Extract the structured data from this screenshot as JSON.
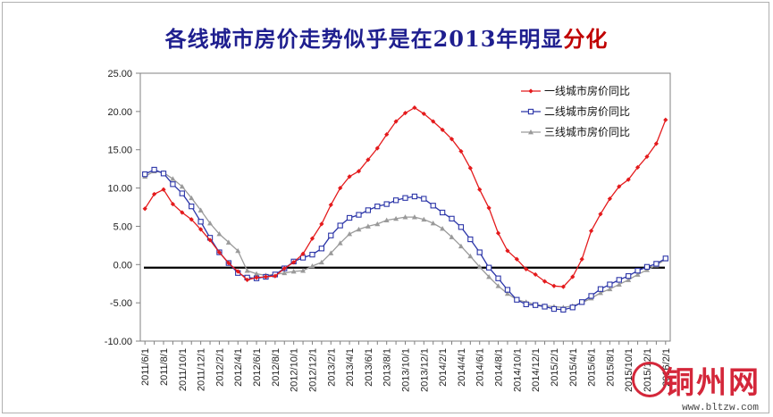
{
  "title_main": "各线城市房价走势似乎是在2013年明显",
  "title_accent": "分化",
  "colors": {
    "series1": "#e41a1c",
    "series2": "#2b35a8",
    "series3": "#9a9a9a",
    "zero_line": "#000000"
  },
  "watermark": {
    "name": "铜州网",
    "url": "www.bltzw.com"
  },
  "chart_data": {
    "type": "line",
    "title": "各线城市房价走势似乎是在2013年明显分化",
    "ylim": [
      -10,
      25
    ],
    "yticks": [
      "25.00",
      "20.00",
      "15.00",
      "10.00",
      "5.00",
      "0.00",
      "-5.00",
      "-10.00"
    ],
    "x": [
      "2011/6/1",
      "2011/7/1",
      "2011/8/1",
      "2011/9/1",
      "2011/10/1",
      "2011/11/1",
      "2011/12/1",
      "2012/1/1",
      "2012/2/1",
      "2012/3/1",
      "2012/4/1",
      "2012/5/1",
      "2012/6/1",
      "2012/7/1",
      "2012/8/1",
      "2012/9/1",
      "2012/10/1",
      "2012/11/1",
      "2012/12/1",
      "2013/1/1",
      "2013/2/1",
      "2013/3/1",
      "2013/4/1",
      "2013/5/1",
      "2013/6/1",
      "2013/7/1",
      "2013/8/1",
      "2013/9/1",
      "2013/10/1",
      "2013/11/1",
      "2013/12/1",
      "2014/1/1",
      "2014/2/1",
      "2014/3/1",
      "2014/4/1",
      "2014/5/1",
      "2014/6/1",
      "2014/7/1",
      "2014/8/1",
      "2014/9/1",
      "2014/10/1",
      "2014/11/1",
      "2014/12/1",
      "2015/1/1",
      "2015/2/1",
      "2015/3/1",
      "2015/4/1",
      "2015/5/1",
      "2015/6/1",
      "2015/7/1",
      "2015/8/1",
      "2015/9/1",
      "2015/10/1",
      "2015/11/1",
      "2015/12/1",
      "2016/1/1",
      "2016/2/1"
    ],
    "xtick_labels": [
      "2011/6/1",
      "2011/8/1",
      "2011/10/1",
      "2011/12/1",
      "2012/2/1",
      "2012/4/1",
      "2012/6/1",
      "2012/8/1",
      "2012/10/1",
      "2012/12/1",
      "2013/2/1",
      "2013/4/1",
      "2013/6/1",
      "2013/8/1",
      "2013/10/1",
      "2013/12/1",
      "2014/2/1",
      "2014/4/1",
      "2014/6/1",
      "2014/8/1",
      "2014/10/1",
      "2014/12/1",
      "2015/2/1",
      "2015/4/1",
      "2015/6/1",
      "2015/8/1",
      "2015/10/1",
      "2015/12/1",
      "2016/2/1"
    ],
    "legend_position": "top-right",
    "series": [
      {
        "name": "一线城市房价同比",
        "marker": "diamond",
        "values": [
          7.3,
          9.2,
          9.8,
          7.9,
          6.8,
          5.9,
          4.6,
          3.2,
          1.6,
          0.2,
          -0.9,
          -2.0,
          -1.7,
          -1.6,
          -1.5,
          -0.5,
          0.3,
          1.4,
          3.4,
          5.3,
          7.8,
          10.0,
          11.5,
          12.2,
          13.7,
          15.2,
          17.0,
          18.7,
          19.8,
          20.5,
          19.7,
          18.7,
          17.6,
          16.4,
          14.8,
          12.6,
          9.8,
          7.4,
          4.1,
          1.8,
          0.7,
          -0.6,
          -1.3,
          -2.2,
          -2.8,
          -2.9,
          -1.6,
          0.7,
          4.4,
          6.6,
          8.6,
          10.2,
          11.1,
          12.7,
          14.1,
          15.8,
          18.9
        ]
      },
      {
        "name": "二线城市房价同比",
        "marker": "square",
        "values": [
          11.8,
          12.4,
          11.9,
          10.5,
          9.3,
          7.6,
          5.6,
          3.5,
          1.6,
          0.2,
          -1.1,
          -1.7,
          -1.8,
          -1.6,
          -1.3,
          -0.5,
          0.4,
          0.9,
          1.3,
          2.1,
          3.8,
          5.1,
          6.1,
          6.5,
          7.1,
          7.6,
          7.9,
          8.4,
          8.7,
          8.9,
          8.6,
          7.7,
          6.8,
          6.0,
          4.9,
          3.3,
          1.6,
          -0.4,
          -1.8,
          -3.3,
          -4.6,
          -5.2,
          -5.3,
          -5.5,
          -5.8,
          -5.9,
          -5.6,
          -4.9,
          -4.1,
          -3.2,
          -2.6,
          -2.0,
          -1.5,
          -0.8,
          -0.3,
          0.1,
          0.8
        ]
      },
      {
        "name": "三线城市房价同比",
        "marker": "triangle",
        "values": [
          11.5,
          12.2,
          12.0,
          11.2,
          10.2,
          8.7,
          7.1,
          5.4,
          4.0,
          2.9,
          1.8,
          -0.8,
          -1.2,
          -1.4,
          -1.3,
          -1.1,
          -0.9,
          -0.8,
          -0.2,
          0.3,
          1.5,
          2.8,
          4.0,
          4.6,
          5.0,
          5.3,
          5.8,
          6.0,
          6.2,
          6.2,
          5.9,
          5.4,
          4.7,
          3.6,
          2.4,
          1.1,
          -0.3,
          -1.6,
          -2.8,
          -3.8,
          -4.6,
          -4.9,
          -5.2,
          -5.4,
          -5.5,
          -5.6,
          -5.4,
          -5.0,
          -4.4,
          -3.7,
          -3.2,
          -2.6,
          -2.0,
          -1.3,
          -0.7,
          -0.1,
          0.7
        ]
      }
    ]
  }
}
